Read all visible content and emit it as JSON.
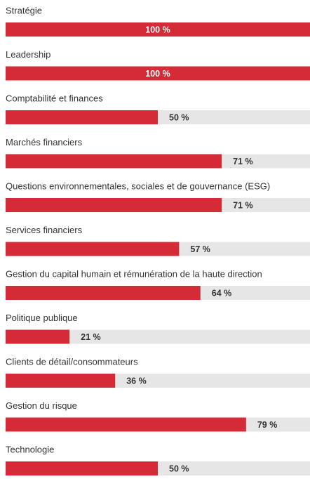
{
  "chart_data": {
    "type": "bar",
    "orientation": "horizontal",
    "categories": [
      "Stratégie",
      "Leadership",
      "Comptabilité et finances",
      "Marchés financiers",
      "Questions environnementales, sociales et de gouvernance (ESG)",
      "Services financiers",
      "Gestion du capital humain et rémunération de la haute direction",
      "Politique publique",
      "Clients de détail/consommateurs",
      "Gestion du risque",
      "Technologie"
    ],
    "values": [
      100,
      100,
      50,
      71,
      71,
      57,
      64,
      21,
      36,
      79,
      50
    ],
    "value_labels": [
      "100 %",
      "100 %",
      "50 %",
      "71 %",
      "71 %",
      "57 %",
      "64 %",
      "21 %",
      "36 %",
      "79 %",
      "50 %"
    ],
    "color": "#d52b36",
    "track_color": "#e6e6e6",
    "xlim": [
      0,
      100
    ]
  }
}
